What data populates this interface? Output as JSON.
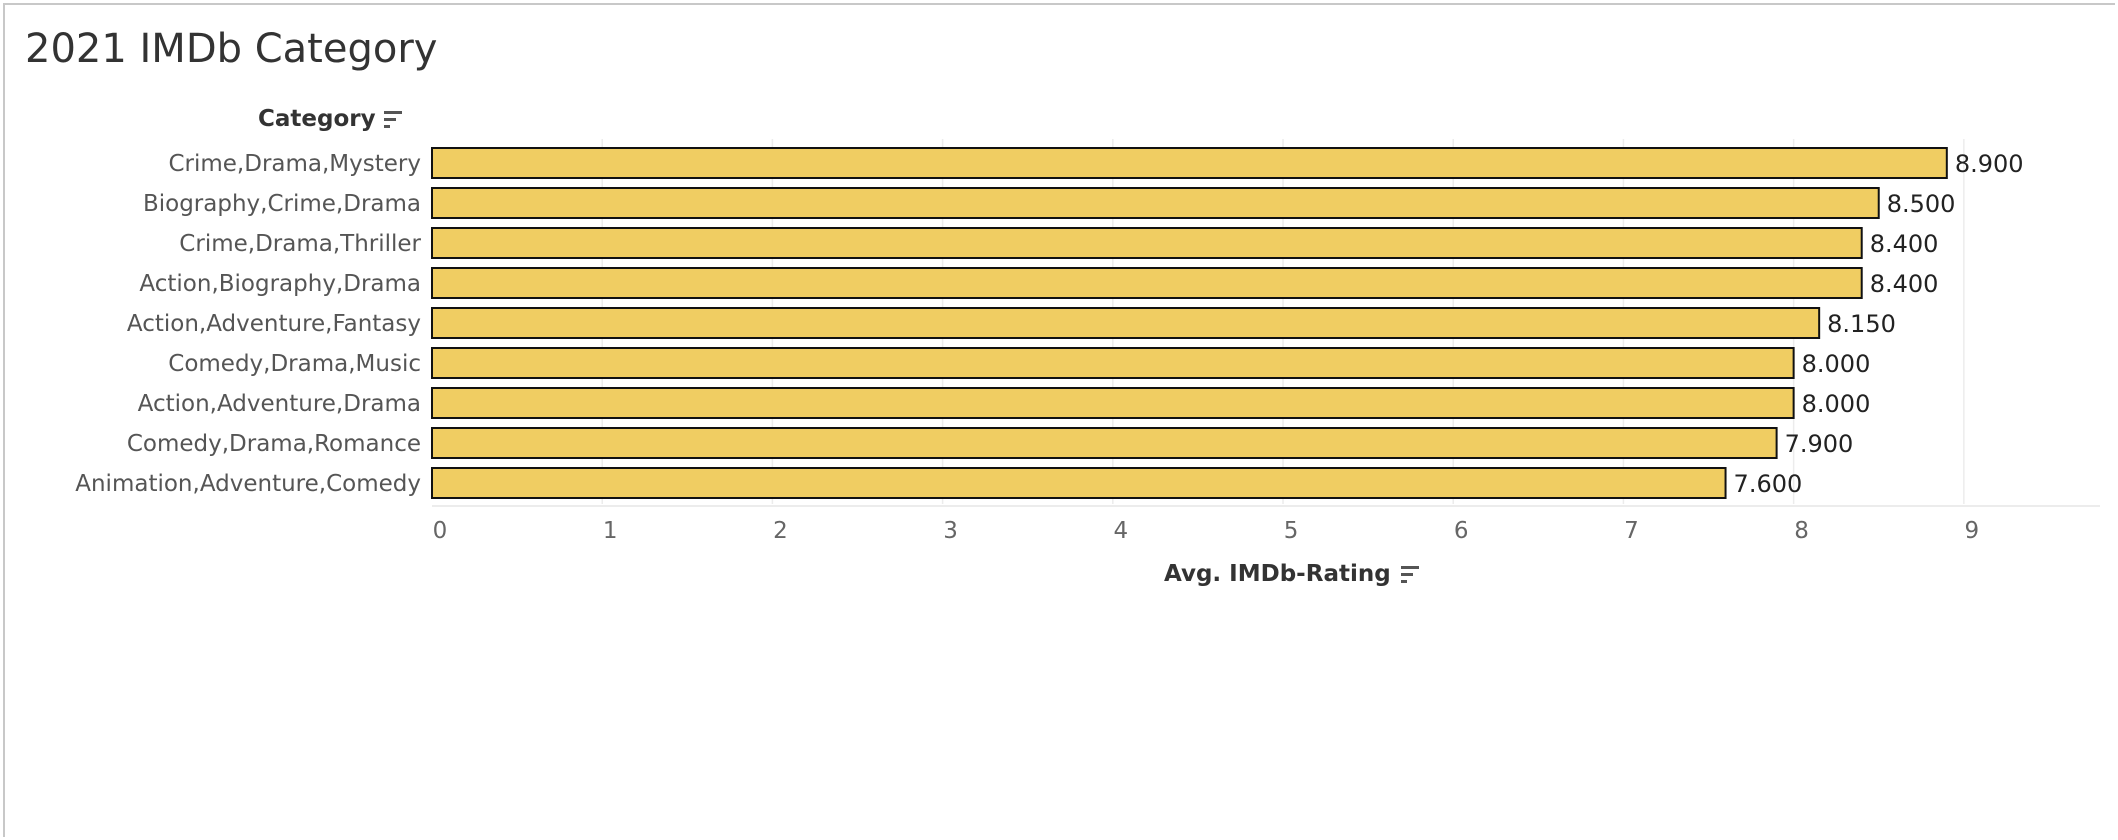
{
  "chart_data": {
    "type": "bar",
    "orientation": "horizontal",
    "title": "2021 IMDb Category",
    "category_axis_label": "Category",
    "value_axis_label": "Avg. IMDb-Rating",
    "categories": [
      "Crime,Drama,Mystery",
      "Biography,Crime,Drama",
      "Crime,Drama,Thriller",
      "Action,Biography,Drama",
      "Action,Adventure,Fantasy",
      "Comedy,Drama,Music",
      "Action,Adventure,Drama",
      "Comedy,Drama,Romance",
      "Animation,Adventure,Comedy"
    ],
    "values": [
      8.9,
      8.5,
      8.4,
      8.4,
      8.15,
      8.0,
      8.0,
      7.9,
      7.6
    ],
    "value_labels": [
      "8.900",
      "8.500",
      "8.400",
      "8.400",
      "8.150",
      "8.000",
      "8.000",
      "7.900",
      "7.600"
    ],
    "ticks": [
      "0",
      "1",
      "2",
      "3",
      "4",
      "5",
      "6",
      "7",
      "8",
      "9"
    ],
    "xlim": [
      0,
      9.8
    ],
    "grid": true,
    "bar_color": "#f0cd62",
    "bar_border_color": "#111111",
    "sort_icon": "sort-descending-icon"
  }
}
